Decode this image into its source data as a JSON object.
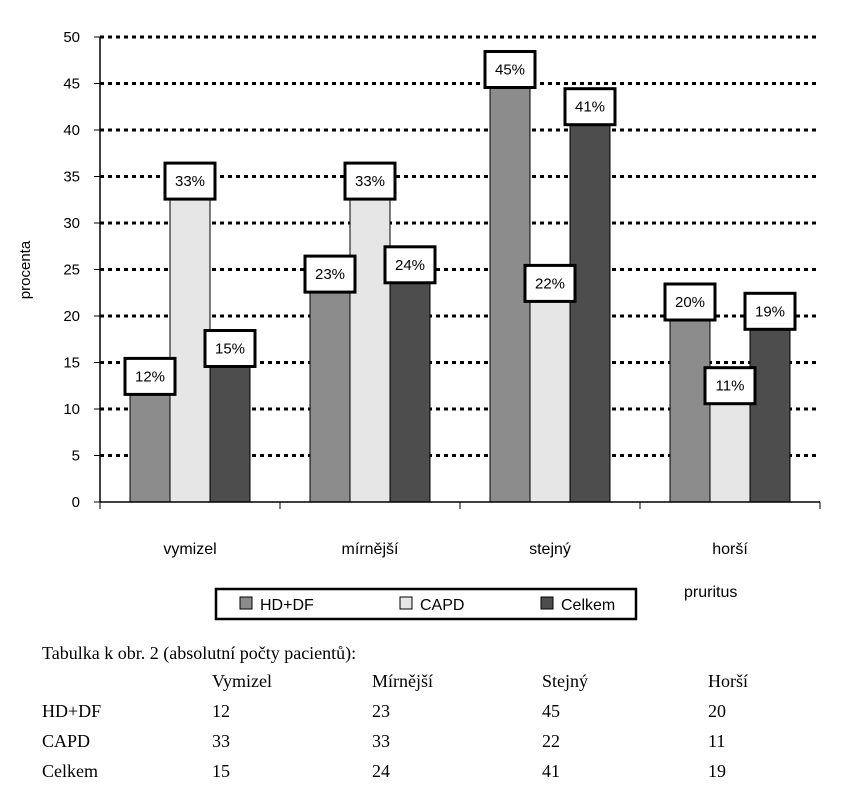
{
  "chart_data": {
    "type": "bar",
    "ylabel": "procenta",
    "xlabel": "pruritus",
    "ylim": [
      0,
      50
    ],
    "yticks": [
      0,
      5,
      10,
      15,
      20,
      25,
      30,
      35,
      40,
      45,
      50
    ],
    "grid": true,
    "legend_placement": "bottom",
    "categories": [
      "vymizel",
      "mírnější",
      "stejný",
      "horší"
    ],
    "series": [
      {
        "name": "HD+DF",
        "values": [
          12,
          23,
          45,
          20
        ],
        "labels": [
          "12%",
          "23%",
          "45%",
          "20%"
        ],
        "color": "#8c8c8c"
      },
      {
        "name": "CAPD",
        "values": [
          33,
          33,
          22,
          11
        ],
        "labels": [
          "33%",
          "33%",
          "22%",
          "11%"
        ],
        "color": "#e6e6e6"
      },
      {
        "name": "Celkem",
        "values": [
          15,
          24,
          41,
          19
        ],
        "labels": [
          "15%",
          "24%",
          "41%",
          "19%"
        ],
        "color": "#4d4d4d"
      }
    ]
  },
  "table": {
    "caption": "Tabulka k obr. 2 (absolutní počty pacientů):",
    "header": [
      "",
      "Vymizel",
      "Mírnější",
      "Stejný",
      "Horší"
    ],
    "rows": [
      [
        "HD+DF",
        "12",
        "23",
        "45",
        "20"
      ],
      [
        "CAPD",
        "33",
        "33",
        "22",
        "11"
      ],
      [
        "Celkem",
        "15",
        "24",
        "41",
        "19"
      ]
    ]
  }
}
